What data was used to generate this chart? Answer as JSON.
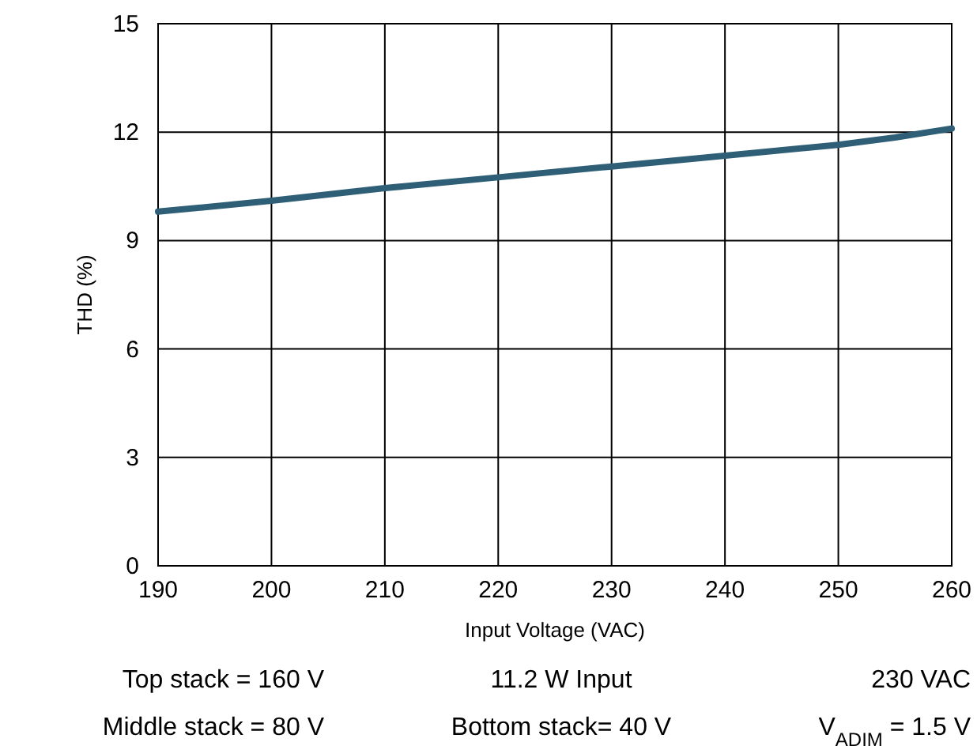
{
  "chart_data": {
    "type": "line",
    "xlabel": "Input Voltage (VAC)",
    "ylabel": "THD (%)",
    "x": [
      190,
      200,
      210,
      220,
      230,
      240,
      250,
      255,
      260
    ],
    "series": [
      {
        "color": "#2e5f76",
        "values": [
          9.8,
          10.1,
          10.45,
          10.75,
          11.05,
          11.35,
          11.65,
          11.85,
          12.1
        ]
      }
    ],
    "xlim": [
      190,
      260
    ],
    "xticks": [
      190,
      200,
      210,
      220,
      230,
      240,
      250,
      260
    ],
    "ylim": [
      0,
      15
    ],
    "yticks": [
      0,
      3,
      6,
      9,
      12,
      15
    ],
    "grid": true,
    "marker": "none",
    "line_style": "solid",
    "annotations": [
      "Top stack = 160 V",
      "11.2 W Input",
      "230 VAC",
      "Middle stack = 80 V",
      "Bottom stack= 40 V",
      "V$_{ADIM}$ = 1.5 V"
    ]
  }
}
